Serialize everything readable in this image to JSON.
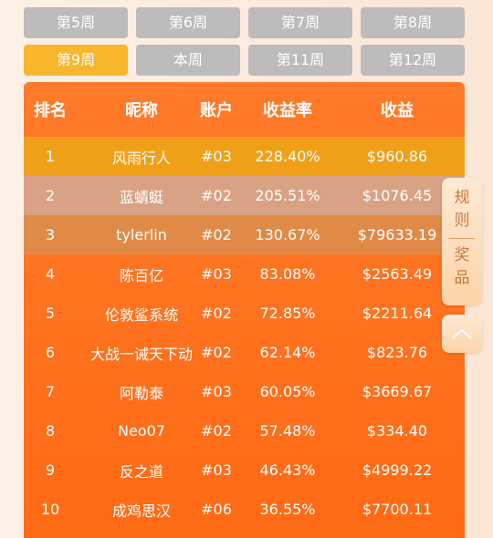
{
  "tabs": [
    "第5周",
    "第6周",
    "第7周",
    "第8周",
    "第9周",
    "本周",
    "第11周",
    "第12周"
  ],
  "active_tab": 4,
  "table": {
    "header": [
      "排名",
      "昵称",
      "账户",
      "收益率",
      "收益"
    ],
    "rows": [
      [
        "1",
        "风雨行人",
        "#03",
        "228.40%",
        "$960.86"
      ],
      [
        "2",
        "蓝蜻蜓",
        "#02",
        "205.51%",
        "$1076.45"
      ],
      [
        "3",
        "tylerlin",
        "#02",
        "130.67%",
        "$79633.19"
      ],
      [
        "4",
        "陈百亿",
        "#03",
        "83.08%",
        "$2563.49"
      ],
      [
        "5",
        "伦敦鲨系统",
        "#02",
        "72.85%",
        "$2211.64"
      ],
      [
        "6",
        "大战一诫天下动",
        "#02",
        "62.14%",
        "$823.76"
      ],
      [
        "7",
        "阿勒泰",
        "#03",
        "60.05%",
        "$3669.67"
      ],
      [
        "8",
        "Neo07",
        "#02",
        "57.48%",
        "$334.40"
      ],
      [
        "9",
        "反之道",
        "#03",
        "46.43%",
        "$4999.22"
      ],
      [
        "10",
        "成鸡思汉",
        "#06",
        "36.55%",
        "$7700.11"
      ]
    ]
  },
  "side_buttons": {
    "rules": [
      "规",
      "则"
    ],
    "prizes": [
      "奖",
      "品"
    ]
  }
}
